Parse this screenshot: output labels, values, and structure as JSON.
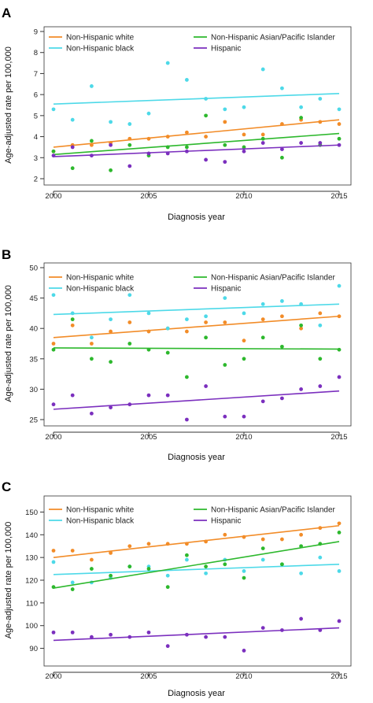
{
  "chart_data": [
    {
      "panel": "A",
      "type": "scatter",
      "title": "",
      "xlabel": "Diagnosis year",
      "ylabel": "Age-adjusted rate per 100,000",
      "xlim": [
        2000,
        2015
      ],
      "ylim": [
        2,
        9
      ],
      "x_ticks": [
        2000,
        2005,
        2010,
        2015
      ],
      "y_ticks": [
        2,
        3,
        4,
        5,
        6,
        7,
        8,
        9
      ],
      "legend_position": "top",
      "x": [
        2000,
        2001,
        2002,
        2003,
        2004,
        2005,
        2006,
        2007,
        2008,
        2009,
        2010,
        2011,
        2012,
        2013,
        2014,
        2015
      ],
      "series": [
        {
          "name": "Non-Hispanic white",
          "color": "#f28c28",
          "values": [
            3.3,
            3.6,
            3.6,
            3.7,
            3.9,
            3.9,
            4.0,
            4.2,
            4.0,
            4.7,
            4.1,
            4.1,
            4.6,
            4.8,
            4.7,
            4.6
          ],
          "trend": [
            3.5,
            4.8
          ]
        },
        {
          "name": "Non-Hispanic black",
          "color": "#4dd9e8",
          "values": [
            5.3,
            4.8,
            6.4,
            4.7,
            4.6,
            5.1,
            7.5,
            6.7,
            5.8,
            5.3,
            5.4,
            7.2,
            6.3,
            5.4,
            5.8,
            5.3
          ],
          "trend": [
            5.55,
            6.05
          ]
        },
        {
          "name": "Non-Hispanic Asian/Pacific Islander",
          "color": "#2db82d",
          "values": [
            3.3,
            2.5,
            3.8,
            2.4,
            3.6,
            3.1,
            3.5,
            3.5,
            5.0,
            3.6,
            3.5,
            3.9,
            3.0,
            4.9,
            3.6,
            3.9
          ],
          "trend": [
            3.15,
            4.15
          ]
        },
        {
          "name": "Hispanic",
          "color": "#7b2fbe",
          "values": [
            3.1,
            3.5,
            3.1,
            3.6,
            2.6,
            3.2,
            3.2,
            3.3,
            2.9,
            2.8,
            3.3,
            3.7,
            3.4,
            3.7,
            3.7,
            3.6
          ],
          "trend": [
            3.05,
            3.6
          ]
        }
      ]
    },
    {
      "panel": "B",
      "type": "scatter",
      "title": "",
      "xlabel": "Diagnosis year",
      "ylabel": "Age-adjusted rate per 100,000",
      "xlim": [
        2000,
        2015
      ],
      "ylim": [
        25,
        50
      ],
      "x_ticks": [
        2000,
        2005,
        2010,
        2015
      ],
      "y_ticks": [
        25,
        30,
        35,
        40,
        45,
        50
      ],
      "legend_position": "top",
      "x": [
        2000,
        2001,
        2002,
        2003,
        2004,
        2005,
        2006,
        2007,
        2008,
        2009,
        2010,
        2011,
        2012,
        2013,
        2014,
        2015
      ],
      "series": [
        {
          "name": "Non-Hispanic white",
          "color": "#f28c28",
          "values": [
            37.5,
            40.5,
            37.5,
            39.5,
            41.0,
            39.5,
            40.0,
            39.5,
            41.0,
            41.0,
            38.0,
            41.5,
            42.0,
            40.0,
            42.5,
            42.0
          ],
          "trend": [
            38.5,
            42.0
          ]
        },
        {
          "name": "Non-Hispanic black",
          "color": "#4dd9e8",
          "values": [
            45.5,
            42.5,
            38.5,
            41.5,
            45.5,
            42.5,
            40.0,
            41.5,
            42.0,
            45.0,
            42.5,
            44.0,
            44.5,
            44.0,
            40.5,
            47.0
          ],
          "trend": [
            42.3,
            44.0
          ]
        },
        {
          "name": "Non-Hispanic Asian/Pacific Islander",
          "color": "#2db82d",
          "values": [
            36.5,
            41.5,
            35.0,
            34.5,
            37.5,
            36.5,
            36.0,
            32.0,
            38.5,
            34.0,
            35.0,
            38.5,
            37.0,
            40.5,
            35.0,
            36.5
          ],
          "trend": [
            36.8,
            36.6
          ]
        },
        {
          "name": "Hispanic",
          "color": "#7b2fbe",
          "values": [
            27.5,
            29.0,
            26.0,
            27.0,
            27.5,
            29.0,
            29.0,
            25.0,
            30.5,
            25.5,
            25.5,
            28.0,
            28.5,
            30.0,
            30.5,
            32.0
          ],
          "trend": [
            26.7,
            29.7
          ]
        }
      ]
    },
    {
      "panel": "C",
      "type": "scatter",
      "title": "",
      "xlabel": "Diagnosis year",
      "ylabel": "Age-adjusted rate per 100,000",
      "xlim": [
        2000,
        2015
      ],
      "ylim": [
        85,
        155
      ],
      "x_ticks": [
        2000,
        2005,
        2010,
        2015
      ],
      "y_ticks": [
        90,
        100,
        110,
        120,
        130,
        140,
        150
      ],
      "legend_position": "top",
      "x": [
        2000,
        2001,
        2002,
        2003,
        2004,
        2005,
        2006,
        2007,
        2008,
        2009,
        2010,
        2011,
        2012,
        2013,
        2014,
        2015
      ],
      "series": [
        {
          "name": "Non-Hispanic white",
          "color": "#f28c28",
          "values": [
            133,
            133,
            129,
            132,
            135,
            136,
            136,
            136,
            137,
            140,
            139,
            138,
            138,
            140,
            143,
            145
          ],
          "trend": [
            130,
            144
          ]
        },
        {
          "name": "Non-Hispanic black",
          "color": "#4dd9e8",
          "values": [
            128,
            119,
            119,
            121,
            126,
            126,
            122,
            129,
            123,
            129,
            124,
            129,
            127,
            123,
            130,
            124
          ],
          "trend": [
            122.5,
            127
          ]
        },
        {
          "name": "Non-Hispanic Asian/Pacific Islander",
          "color": "#2db82d",
          "values": [
            117,
            116,
            125,
            122,
            126,
            125,
            117,
            131,
            126,
            127,
            121,
            134,
            127,
            135,
            136,
            141
          ],
          "trend": [
            116.5,
            137
          ]
        },
        {
          "name": "Hispanic",
          "color": "#7b2fbe",
          "values": [
            97,
            97,
            95,
            96,
            95,
            97,
            91,
            96,
            95,
            95,
            89,
            99,
            98,
            103,
            98,
            102
          ],
          "trend": [
            93.5,
            99
          ]
        }
      ]
    }
  ]
}
